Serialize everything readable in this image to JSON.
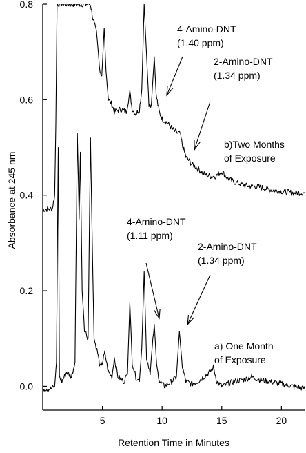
{
  "chart_data": {
    "type": "line",
    "xlabel": "Retention Time in Minutes",
    "ylabel": "Absorbance at 245 nm",
    "xlim": [
      0,
      22
    ],
    "ylim": [
      -0.05,
      0.8
    ],
    "xticks": [
      5,
      10,
      15,
      20
    ],
    "yticks": [
      0.0,
      0.2,
      0.4,
      0.6,
      0.8
    ],
    "xtick_labels": [
      "5",
      "10",
      "15",
      "20"
    ],
    "ytick_labels": [
      "0.0",
      "0.2",
      "0.4",
      "0.6",
      "0.8"
    ],
    "grid": false,
    "series": [
      {
        "name": "b)Two Months of Exposure",
        "baseline": 0.37,
        "points": [
          [
            0,
            0.37
          ],
          [
            0.8,
            0.372
          ],
          [
            1.0,
            0.4
          ],
          [
            1.1,
            0.55
          ],
          [
            1.2,
            0.8
          ],
          [
            1.3,
            0.8
          ],
          [
            1.6,
            0.8
          ],
          [
            1.7,
            0.8
          ],
          [
            2.0,
            0.8
          ],
          [
            2.5,
            0.8
          ],
          [
            3.0,
            0.8
          ],
          [
            3.5,
            0.8
          ],
          [
            4.0,
            0.8
          ],
          [
            4.2,
            0.77
          ],
          [
            4.5,
            0.74
          ],
          [
            4.8,
            0.66
          ],
          [
            4.95,
            0.65
          ],
          [
            5.15,
            0.75
          ],
          [
            5.3,
            0.66
          ],
          [
            5.5,
            0.6
          ],
          [
            5.8,
            0.59
          ],
          [
            6.0,
            0.575
          ],
          [
            6.5,
            0.58
          ],
          [
            7.0,
            0.575
          ],
          [
            7.3,
            0.615
          ],
          [
            7.5,
            0.58
          ],
          [
            7.8,
            0.57
          ],
          [
            8.1,
            0.58
          ],
          [
            8.3,
            0.62
          ],
          [
            8.5,
            0.8
          ],
          [
            8.65,
            0.72
          ],
          [
            8.9,
            0.59
          ],
          [
            9.1,
            0.59
          ],
          [
            9.35,
            0.69
          ],
          [
            9.5,
            0.61
          ],
          [
            9.75,
            0.575
          ],
          [
            10.0,
            0.56
          ],
          [
            10.5,
            0.55
          ],
          [
            11.0,
            0.535
          ],
          [
            11.3,
            0.53
          ],
          [
            11.5,
            0.53
          ],
          [
            11.7,
            0.505
          ],
          [
            12.0,
            0.48
          ],
          [
            12.5,
            0.465
          ],
          [
            13.0,
            0.455
          ],
          [
            13.5,
            0.445
          ],
          [
            14.0,
            0.44
          ],
          [
            14.5,
            0.44
          ],
          [
            15.0,
            0.45
          ],
          [
            15.5,
            0.435
          ],
          [
            16.0,
            0.428
          ],
          [
            17.0,
            0.42
          ],
          [
            18.0,
            0.418
          ],
          [
            19.0,
            0.412
          ],
          [
            20.0,
            0.408
          ],
          [
            21.0,
            0.405
          ],
          [
            22.0,
            0.405
          ]
        ]
      },
      {
        "name": "a) One Month of Exposure",
        "baseline": 0.0,
        "points": [
          [
            0,
            -0.005
          ],
          [
            0.7,
            -0.005
          ],
          [
            1.0,
            0.0
          ],
          [
            1.15,
            0.05
          ],
          [
            1.3,
            0.5
          ],
          [
            1.4,
            0.02
          ],
          [
            1.6,
            0.01
          ],
          [
            2.0,
            0.03
          ],
          [
            2.4,
            0.02
          ],
          [
            2.7,
            0.05
          ],
          [
            2.9,
            0.53
          ],
          [
            3.05,
            0.35
          ],
          [
            3.15,
            0.49
          ],
          [
            3.3,
            0.2
          ],
          [
            3.5,
            0.12
          ],
          [
            3.8,
            0.1
          ],
          [
            4.0,
            0.52
          ],
          [
            4.15,
            0.3
          ],
          [
            4.3,
            0.1
          ],
          [
            4.6,
            0.07
          ],
          [
            4.8,
            0.04
          ],
          [
            5.0,
            0.05
          ],
          [
            5.2,
            0.07
          ],
          [
            5.5,
            0.03
          ],
          [
            5.8,
            0.02
          ],
          [
            6.0,
            0.06
          ],
          [
            6.3,
            0.02
          ],
          [
            6.8,
            0.01
          ],
          [
            7.1,
            0.025
          ],
          [
            7.3,
            0.175
          ],
          [
            7.5,
            0.05
          ],
          [
            7.8,
            0.02
          ],
          [
            8.1,
            0.01
          ],
          [
            8.3,
            0.08
          ],
          [
            8.5,
            0.24
          ],
          [
            8.7,
            0.06
          ],
          [
            9.0,
            0.03
          ],
          [
            9.35,
            0.13
          ],
          [
            9.55,
            0.04
          ],
          [
            9.8,
            0.01
          ],
          [
            10.2,
            0.0
          ],
          [
            10.8,
            0.01
          ],
          [
            11.2,
            0.02
          ],
          [
            11.45,
            0.115
          ],
          [
            11.7,
            0.04
          ],
          [
            12.0,
            0.01
          ],
          [
            12.5,
            0.005
          ],
          [
            13.0,
            0.01
          ],
          [
            13.5,
            0.02
          ],
          [
            14.0,
            0.03
          ],
          [
            14.3,
            0.04
          ],
          [
            14.6,
            0.01
          ],
          [
            15.0,
            0.0
          ],
          [
            16.0,
            0.01
          ],
          [
            17.0,
            0.015
          ],
          [
            17.5,
            0.02
          ],
          [
            18.0,
            0.015
          ],
          [
            19.0,
            0.01
          ],
          [
            20.0,
            0.005
          ],
          [
            21.0,
            0.0
          ],
          [
            22.0,
            -0.005
          ]
        ]
      }
    ],
    "annotations": [
      {
        "id": "top-4amino-name",
        "text": "4-Amino-DNT",
        "conc": "(1.40 ppm)"
      },
      {
        "id": "top-2amino-name",
        "text": "2-Amino-DNT",
        "conc": "(1.34 ppm)"
      },
      {
        "id": "top-label",
        "text": "b)Two Months",
        "line2": "of Exposure"
      },
      {
        "id": "bot-4amino-name",
        "text": "4-Amino-DNT",
        "conc": "(1.11 ppm)"
      },
      {
        "id": "bot-2amino-name",
        "text": "2-Amino-DNT",
        "conc": "(1.34 ppm)"
      },
      {
        "id": "bot-label",
        "text": "a)  One Month",
        "line2": "of Exposure"
      }
    ]
  }
}
